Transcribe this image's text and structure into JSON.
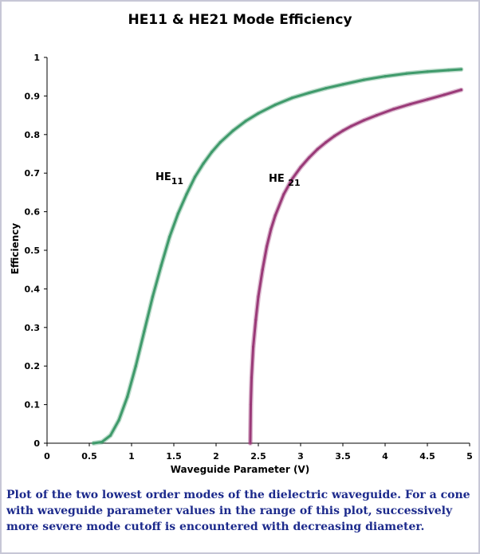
{
  "chart_data": {
    "type": "line",
    "title": "HE11 & HE21 Mode Efficiency",
    "xlabel": "Waveguide Parameter (V)",
    "ylabel": "Efficiency",
    "xlim": [
      0,
      5
    ],
    "ylim": [
      0,
      1
    ],
    "xticks": [
      "0",
      "0.5",
      "1",
      "1.5",
      "2",
      "2.5",
      "3",
      "3.5",
      "4",
      "4.5",
      "5"
    ],
    "yticks": [
      "0",
      "0.1",
      "0.2",
      "0.3",
      "0.4",
      "0.5",
      "0.6",
      "0.7",
      "0.8",
      "0.9",
      "1"
    ],
    "grid": false,
    "series": [
      {
        "name": "HE11",
        "label_main": "HE",
        "label_sub": "11",
        "color": "#3f9a6b",
        "x": [
          0.55,
          0.65,
          0.75,
          0.85,
          0.95,
          1.05,
          1.15,
          1.25,
          1.35,
          1.45,
          1.55,
          1.65,
          1.75,
          1.85,
          1.95,
          2.05,
          2.2,
          2.35,
          2.5,
          2.7,
          2.9,
          3.1,
          3.3,
          3.5,
          3.75,
          4.0,
          4.25,
          4.5,
          4.75,
          4.9
        ],
        "y": [
          0.0,
          0.003,
          0.02,
          0.06,
          0.12,
          0.2,
          0.29,
          0.38,
          0.46,
          0.535,
          0.595,
          0.645,
          0.69,
          0.725,
          0.755,
          0.78,
          0.81,
          0.835,
          0.855,
          0.877,
          0.895,
          0.908,
          0.92,
          0.93,
          0.942,
          0.951,
          0.958,
          0.963,
          0.967,
          0.969
        ]
      },
      {
        "name": "HE21",
        "label_main": "HE",
        "label_sub": "21",
        "color": "#9a3a78",
        "x": [
          2.405,
          2.41,
          2.42,
          2.44,
          2.47,
          2.5,
          2.55,
          2.6,
          2.65,
          2.7,
          2.8,
          2.9,
          3.0,
          3.1,
          3.2,
          3.3,
          3.4,
          3.5,
          3.6,
          3.75,
          3.9,
          4.1,
          4.3,
          4.5,
          4.7,
          4.9
        ],
        "y": [
          0.0,
          0.1,
          0.17,
          0.25,
          0.32,
          0.38,
          0.45,
          0.51,
          0.555,
          0.59,
          0.645,
          0.685,
          0.715,
          0.74,
          0.762,
          0.78,
          0.796,
          0.81,
          0.822,
          0.837,
          0.85,
          0.866,
          0.879,
          0.891,
          0.903,
          0.916
        ]
      }
    ]
  },
  "caption": "Plot of the two lowest order modes of the dielectric waveguide.  For a cone with waveguide parameter values in the range of this plot, successively more severe mode cutoff is encountered with decreasing diameter."
}
